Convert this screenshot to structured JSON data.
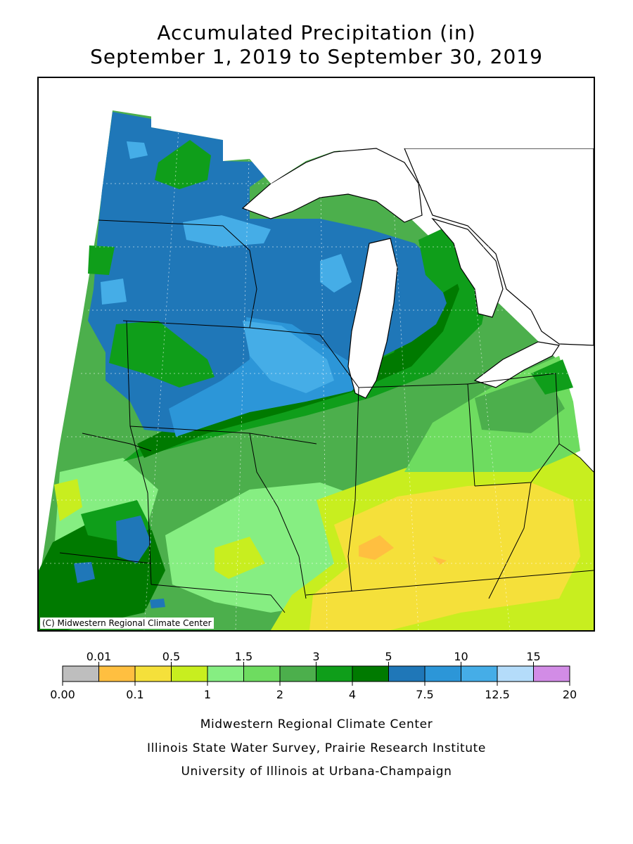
{
  "title": {
    "line1": "Accumulated Precipitation (in)",
    "line2": "September 1, 2019 to September 30, 2019"
  },
  "map": {
    "copyright": "(C) Midwestern Regional Climate Center",
    "region_colors": {
      "blue_dark": "#1f77b8",
      "blue_mid": "#2c96d8",
      "blue_light": "#45ade7",
      "green_darkest": "#007a00",
      "green_dark": "#0f9e1a",
      "green_mid": "#4caf4c",
      "green_light": "#6edc60",
      "green_lightest": "#86ee82",
      "yellow_green": "#c8ee1f",
      "yellow": "#f5e03a",
      "orange": "#ffbf40",
      "water": "#ffffff"
    }
  },
  "legend": {
    "bins": [
      {
        "color": "#bebebe"
      },
      {
        "color": "#ffbf40"
      },
      {
        "color": "#f5e03a"
      },
      {
        "color": "#c8ee1f"
      },
      {
        "color": "#86ee82"
      },
      {
        "color": "#6edc60"
      },
      {
        "color": "#4caf4c"
      },
      {
        "color": "#0f9e1a"
      },
      {
        "color": "#007a00"
      },
      {
        "color": "#1f77b8"
      },
      {
        "color": "#2c96d8"
      },
      {
        "color": "#45ade7"
      },
      {
        "color": "#b4dcfa"
      },
      {
        "color": "#d28ce6"
      }
    ],
    "top_labels": [
      "0.01",
      "0.5",
      "1.5",
      "3",
      "5",
      "10",
      "15"
    ],
    "bottom_labels": [
      "0.00",
      "0.1",
      "1",
      "2",
      "4",
      "7.5",
      "12.5",
      "20"
    ]
  },
  "credits": {
    "line1": "Midwestern Regional Climate Center",
    "line2": "Illinois State Water Survey, Prairie Research Institute",
    "line3": "University of Illinois at Urbana-Champaign"
  }
}
